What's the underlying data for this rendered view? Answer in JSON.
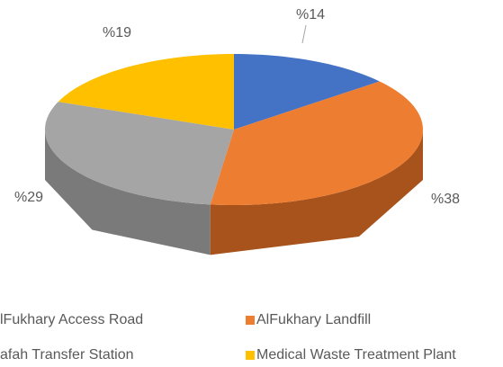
{
  "chart_data": {
    "type": "pie",
    "categories": [
      "lFukhary Access Road",
      "AlFukhary Landfill",
      "afah Transfer Station",
      "Medical Waste Treatment Plant"
    ],
    "values": [
      14,
      38,
      29,
      19
    ],
    "value_labels": [
      "%14",
      "%38",
      "%29",
      "%19"
    ],
    "colors": [
      "#4472c4",
      "#ed7d31",
      "#a5a5a5",
      "#ffc000"
    ],
    "side_colors": [
      "#2f5597",
      "#a9531c",
      "#7a7a7a",
      "#bf9000"
    ]
  }
}
